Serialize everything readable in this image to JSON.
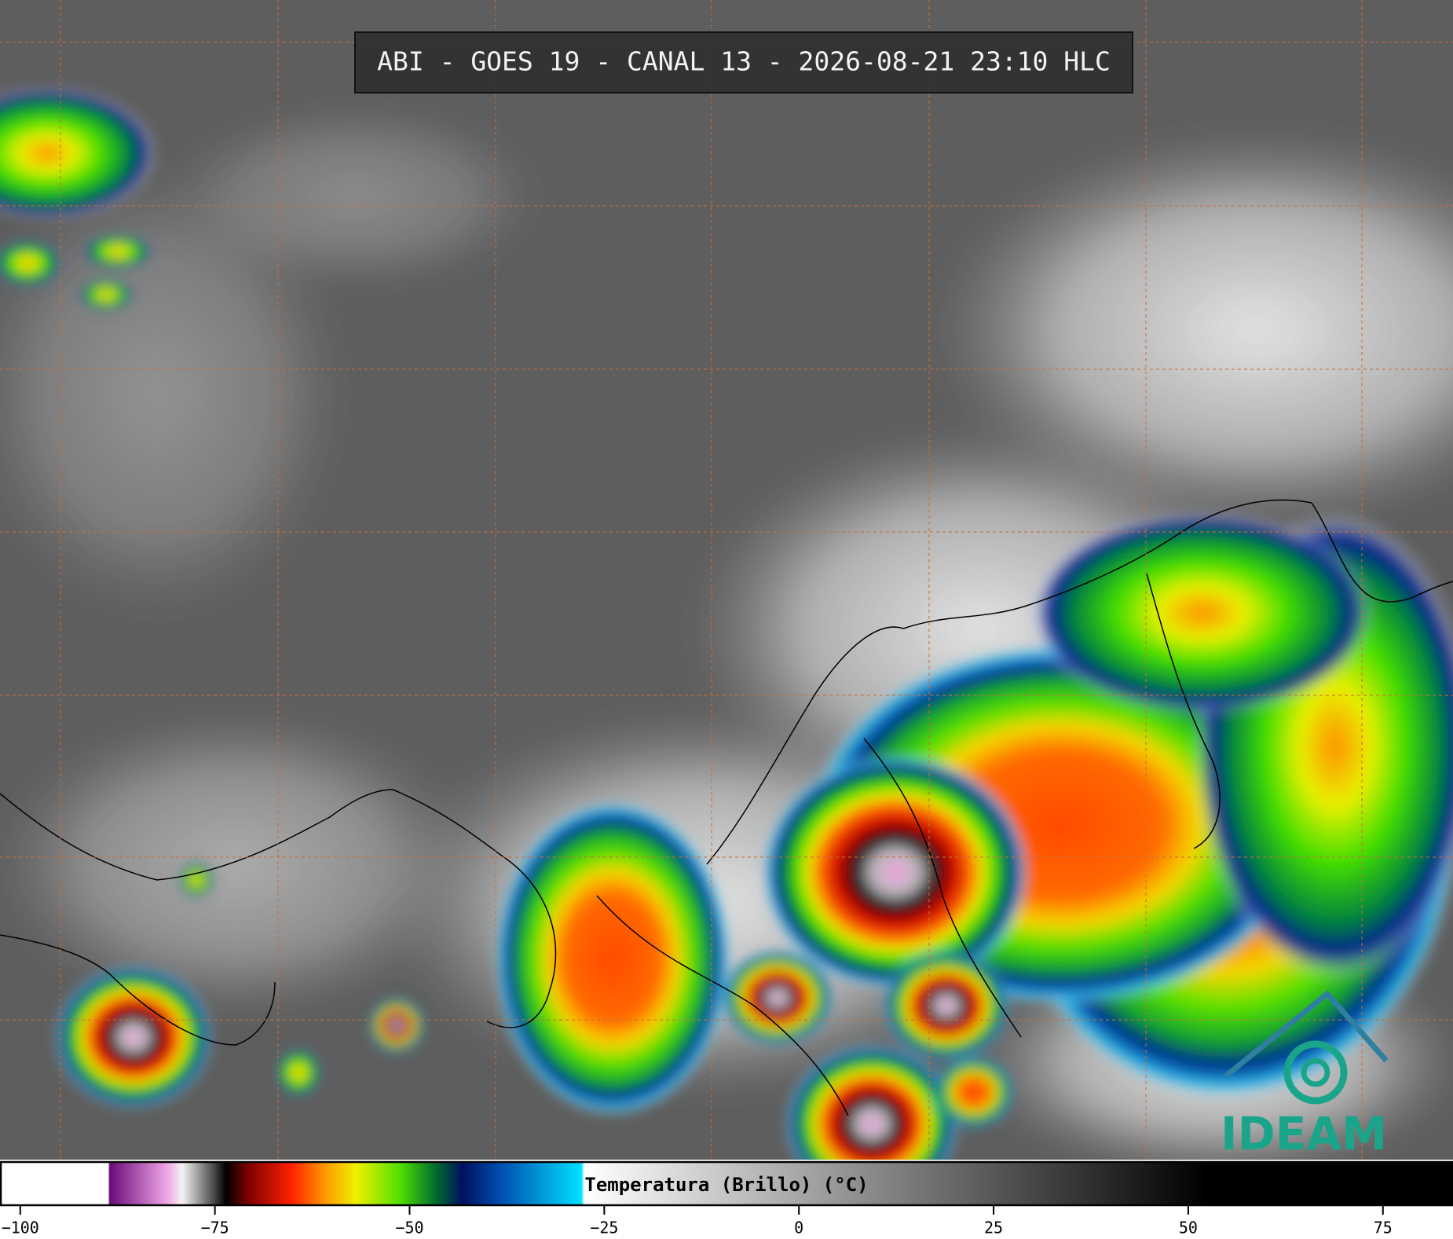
{
  "title": "ABI - GOES 19 - CANAL 13 - 2026-08-21 23:10 HLC",
  "colorbar": {
    "label": "Temperatura (Brillo) (°C)",
    "range": [
      -102.6,
      84
    ],
    "ticks": [
      {
        "value": -100,
        "label": "−100"
      },
      {
        "value": -75,
        "label": "−75"
      },
      {
        "value": -50,
        "label": "−50"
      },
      {
        "value": -25,
        "label": "−25"
      },
      0,
      25,
      50,
      75
    ]
  },
  "logo": "IDEAM"
}
